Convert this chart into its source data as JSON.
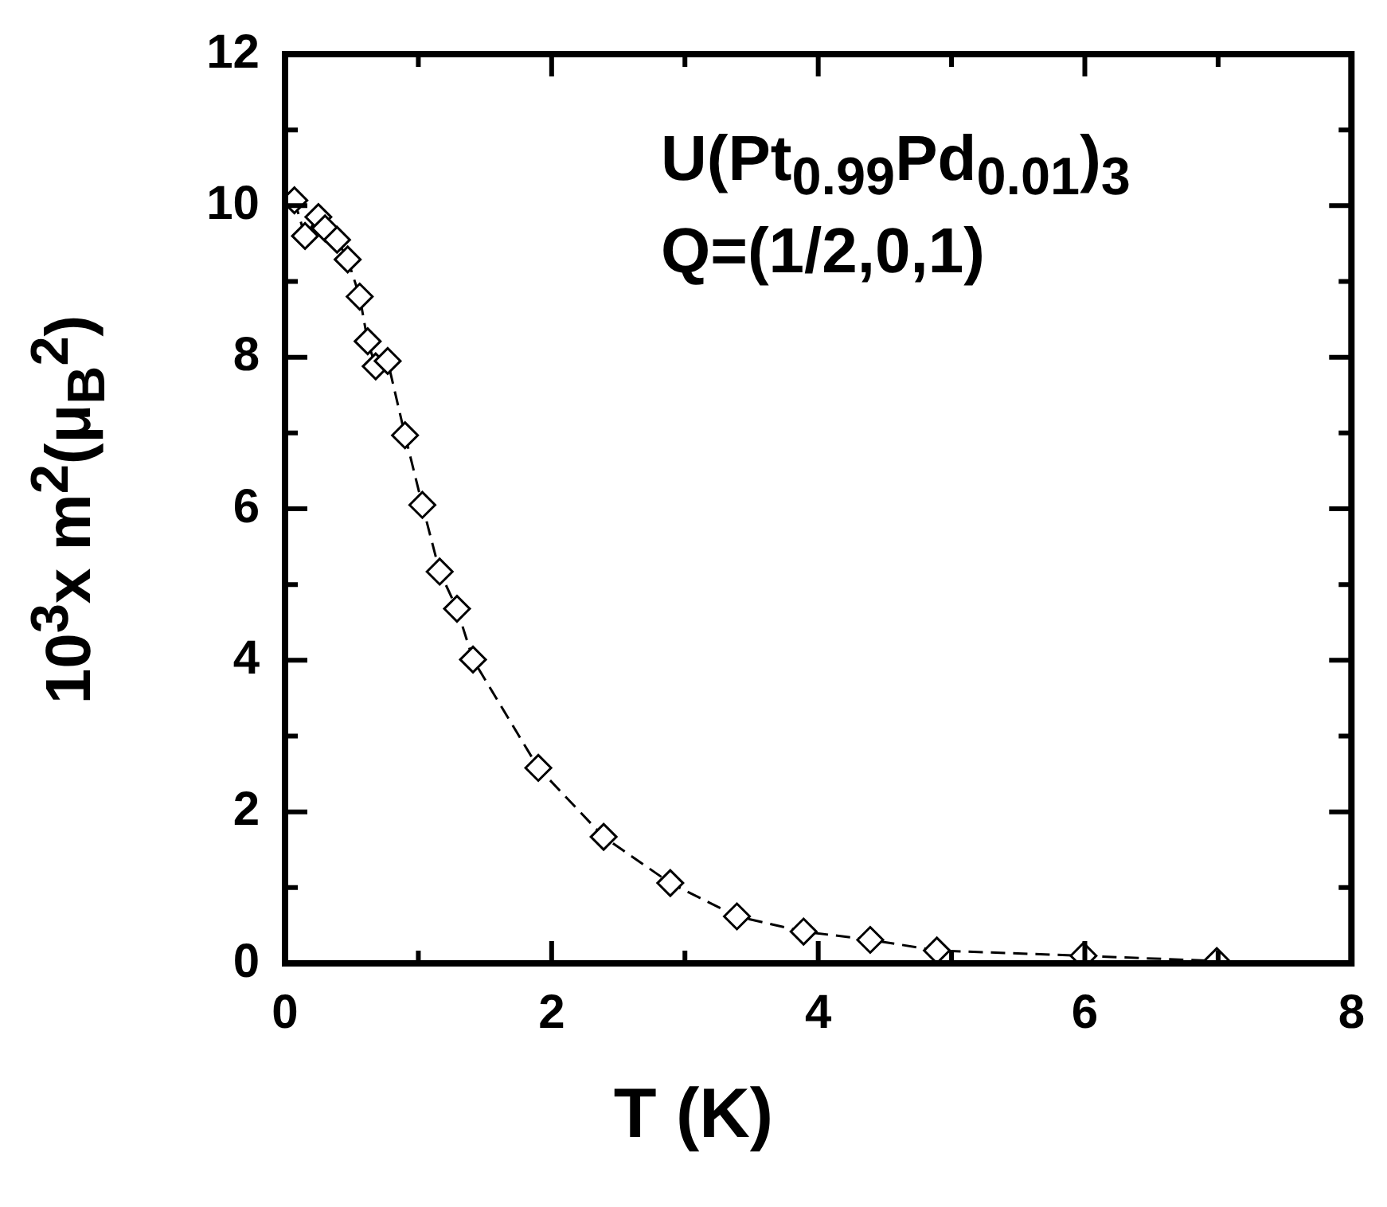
{
  "chart_data": {
    "type": "line",
    "xlabel": "T (K)",
    "ylabel": "10$^{3}$x m$^{2}$(μ$_{B}$$^{2}$)",
    "annotations": [
      "U(Pt$_{0.99}$Pd$_{0.01}$)$_{3}$",
      "Q=(1/2,0,1)"
    ],
    "x": [
      0.07,
      0.15,
      0.25,
      0.3,
      0.39,
      0.47,
      0.56,
      0.62,
      0.68,
      0.77,
      0.9,
      1.03,
      1.16,
      1.29,
      1.41,
      1.9,
      2.39,
      2.89,
      3.39,
      3.89,
      4.39,
      4.89,
      5.99,
      6.99
    ],
    "series": [
      {
        "color": "#000000",
        "values": [
          10.07,
          9.6,
          9.85,
          9.7,
          9.55,
          9.29,
          8.8,
          8.21,
          7.88,
          7.95,
          6.97,
          6.05,
          5.17,
          4.68,
          4.01,
          2.58,
          1.67,
          1.06,
          0.62,
          0.42,
          0.31,
          0.17,
          0.1,
          0.03
        ]
      }
    ],
    "xlim": [
      0,
      8
    ],
    "xticks": [
      0,
      2,
      4,
      6,
      8
    ],
    "ylim": [
      0,
      12
    ],
    "yticks": [
      0,
      2,
      4,
      6,
      8,
      10,
      12
    ],
    "grid": false,
    "legend": false,
    "marker": "diamond",
    "line_style": "dashed"
  }
}
